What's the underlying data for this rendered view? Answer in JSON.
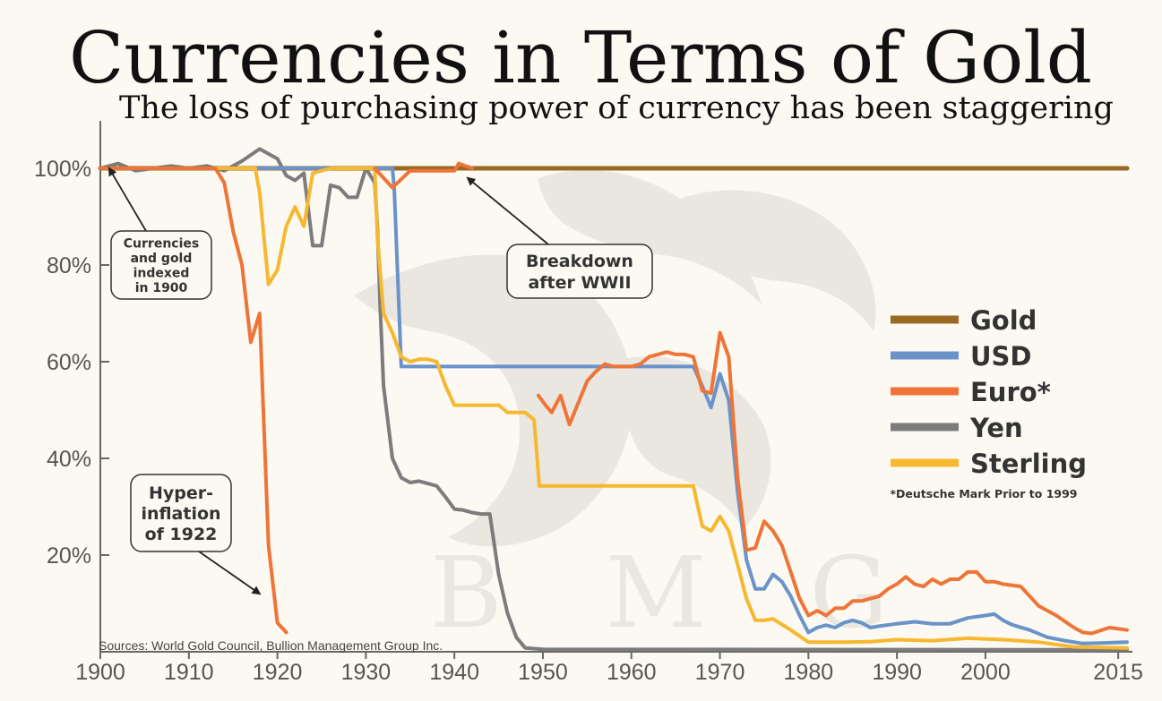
{
  "chart_data": {
    "type": "line",
    "title": "Currencies in Terms of Gold",
    "subtitle": "The loss of purchasing power of currency has been staggering",
    "xlabel": "",
    "ylabel": "",
    "xlim": [
      1900,
      2016
    ],
    "ylim": [
      0,
      105
    ],
    "x_ticks": [
      1900,
      1910,
      1920,
      1930,
      1940,
      1950,
      1960,
      1970,
      1980,
      1990,
      2000,
      2015
    ],
    "y_ticks": [
      {
        "value": 20,
        "label": "20%"
      },
      {
        "value": 40,
        "label": "40%"
      },
      {
        "value": 60,
        "label": "60%"
      },
      {
        "value": 80,
        "label": "80%"
      },
      {
        "value": 100,
        "label": "100%"
      }
    ],
    "legend_position": "right",
    "legend_note": "*Deutsche Mark Prior to 1999",
    "source": "Sources: World Gold Council, Bullion Management Group Inc.",
    "annotations": [
      {
        "id": "indexed",
        "lines": [
          "Currencies",
          "and gold",
          "indexed",
          "in 1900"
        ],
        "target": [
          1901,
          100
        ]
      },
      {
        "id": "wwii",
        "lines": [
          "Breakdown",
          "after WWII"
        ],
        "target": [
          1941.5,
          98
        ]
      },
      {
        "id": "hyper",
        "lines": [
          "Hyper-",
          "inflation",
          "of 1922"
        ],
        "target": [
          1918,
          12
        ]
      }
    ],
    "series": [
      {
        "name": "Gold",
        "color": "#9a6a25",
        "points": [
          [
            1900,
            100
          ],
          [
            2016,
            100
          ]
        ]
      },
      {
        "name": "Yen",
        "color": "#7c7c7c",
        "points": [
          [
            1900,
            100
          ],
          [
            1902,
            101
          ],
          [
            1904,
            99.5
          ],
          [
            1906,
            100
          ],
          [
            1908,
            100.5
          ],
          [
            1910,
            100
          ],
          [
            1912,
            100.5
          ],
          [
            1914,
            99.5
          ],
          [
            1916,
            101.5
          ],
          [
            1918,
            104
          ],
          [
            1920,
            102
          ],
          [
            1921,
            98.5
          ],
          [
            1922,
            97.5
          ],
          [
            1923,
            99
          ],
          [
            1924,
            84
          ],
          [
            1925,
            84
          ],
          [
            1926,
            96.5
          ],
          [
            1927,
            96
          ],
          [
            1928,
            94
          ],
          [
            1929,
            94
          ],
          [
            1930,
            100
          ],
          [
            1931,
            97
          ],
          [
            1931.3,
            88
          ],
          [
            1931.6,
            72
          ],
          [
            1932,
            55
          ],
          [
            1933,
            40
          ],
          [
            1934,
            36
          ],
          [
            1935,
            35
          ],
          [
            1936,
            35.3
          ],
          [
            1937,
            34.8
          ],
          [
            1938,
            34.3
          ],
          [
            1939,
            32
          ],
          [
            1940,
            29.5
          ],
          [
            1941,
            29.3
          ],
          [
            1942,
            28.8
          ],
          [
            1943,
            28.5
          ],
          [
            1944,
            28.5
          ],
          [
            1945,
            16
          ],
          [
            1946,
            8
          ],
          [
            1947,
            3
          ],
          [
            1948,
            0.8
          ],
          [
            1950,
            0.5
          ],
          [
            2016,
            0.4
          ]
        ]
      },
      {
        "name": "USD",
        "color": "#6a93c9",
        "points": [
          [
            1900,
            100
          ],
          [
            1933,
            100
          ],
          [
            1933.2,
            96
          ],
          [
            1934,
            59
          ],
          [
            1967,
            59
          ],
          [
            1968,
            55
          ],
          [
            1969,
            50.5
          ],
          [
            1970,
            57.5
          ],
          [
            1971,
            52
          ],
          [
            1972,
            33
          ],
          [
            1973,
            19
          ],
          [
            1974,
            13
          ],
          [
            1975,
            13
          ],
          [
            1976,
            16
          ],
          [
            1977,
            14.5
          ],
          [
            1978,
            11.5
          ],
          [
            1979,
            7.5
          ],
          [
            1980,
            4
          ],
          [
            1981,
            5
          ],
          [
            1982,
            5.5
          ],
          [
            1983,
            5
          ],
          [
            1984,
            6
          ],
          [
            1985,
            6.5
          ],
          [
            1986,
            6
          ],
          [
            1987,
            5
          ],
          [
            1988,
            5.3
          ],
          [
            1990,
            5.8
          ],
          [
            1992,
            6.2
          ],
          [
            1994,
            5.8
          ],
          [
            1996,
            5.8
          ],
          [
            1998,
            7
          ],
          [
            2000,
            7.5
          ],
          [
            2001,
            7.8
          ],
          [
            2002,
            6.5
          ],
          [
            2003,
            5.6
          ],
          [
            2005,
            4.5
          ],
          [
            2007,
            3
          ],
          [
            2009,
            2.3
          ],
          [
            2011,
            1.7
          ],
          [
            2013,
            1.8
          ],
          [
            2016,
            2
          ]
        ]
      },
      {
        "name": "Sterling",
        "color": "#f7b831",
        "points": [
          [
            1900,
            100
          ],
          [
            1917.5,
            100
          ],
          [
            1918,
            95
          ],
          [
            1919,
            76
          ],
          [
            1920,
            79
          ],
          [
            1921,
            88
          ],
          [
            1922,
            92
          ],
          [
            1923,
            88
          ],
          [
            1924,
            99
          ],
          [
            1926,
            100
          ],
          [
            1931,
            100
          ],
          [
            1931.3,
            86
          ],
          [
            1932,
            70
          ],
          [
            1933,
            66
          ],
          [
            1934,
            61
          ],
          [
            1935,
            60
          ],
          [
            1936,
            60.5
          ],
          [
            1937,
            60.5
          ],
          [
            1938,
            60
          ],
          [
            1939,
            55
          ],
          [
            1940,
            51
          ],
          [
            1945,
            51
          ],
          [
            1946,
            49.5
          ],
          [
            1948,
            49.5
          ],
          [
            1949,
            48
          ],
          [
            1949.6,
            34.3
          ],
          [
            1967,
            34.3
          ],
          [
            1968,
            26
          ],
          [
            1969,
            25
          ],
          [
            1970,
            28
          ],
          [
            1971,
            25
          ],
          [
            1972,
            18
          ],
          [
            1973,
            11
          ],
          [
            1974,
            6.5
          ],
          [
            1975,
            6.5
          ],
          [
            1976,
            6.8
          ],
          [
            1978,
            4.5
          ],
          [
            1980,
            2
          ],
          [
            1982,
            2
          ],
          [
            1984,
            2
          ],
          [
            1987,
            2.1
          ],
          [
            1990,
            2.5
          ],
          [
            1994,
            2.3
          ],
          [
            1998,
            2.8
          ],
          [
            2002,
            2.5
          ],
          [
            2006,
            2
          ],
          [
            2010,
            1
          ],
          [
            2016,
            0.8
          ]
        ]
      },
      {
        "name": "Euro*",
        "color": "#ef7437",
        "points": [
          [
            1900,
            100
          ],
          [
            1913,
            100
          ],
          [
            1914,
            97
          ],
          [
            1915,
            87
          ],
          [
            1916,
            80
          ],
          [
            1917,
            64
          ],
          [
            1918,
            70
          ],
          [
            1919,
            22
          ],
          [
            1920,
            6
          ],
          [
            1921,
            4
          ]
        ]
      },
      {
        "name": "Euro*",
        "color": "#ef7437",
        "points": [
          [
            1931,
            100
          ],
          [
            1933,
            96
          ],
          [
            1935,
            99.5
          ],
          [
            1940,
            99.5
          ],
          [
            1940.5,
            101
          ],
          [
            1942,
            100
          ]
        ]
      },
      {
        "name": "Euro*",
        "color": "#ef7437",
        "points": [
          [
            1949.5,
            53
          ],
          [
            1950.3,
            51
          ],
          [
            1951,
            49.5
          ],
          [
            1952,
            53
          ],
          [
            1953,
            47
          ],
          [
            1955,
            56
          ],
          [
            1956,
            58
          ],
          [
            1957,
            59.5
          ],
          [
            1958,
            59
          ],
          [
            1960,
            59
          ],
          [
            1961,
            59.5
          ],
          [
            1962,
            61
          ],
          [
            1964,
            62
          ],
          [
            1965,
            61.5
          ],
          [
            1966,
            61.5
          ],
          [
            1967,
            61
          ],
          [
            1968,
            54
          ],
          [
            1969,
            53.5
          ],
          [
            1970,
            66
          ],
          [
            1971,
            61
          ],
          [
            1972,
            36
          ],
          [
            1973,
            21
          ],
          [
            1974,
            21.5
          ],
          [
            1975,
            27
          ],
          [
            1976,
            25
          ],
          [
            1977,
            22
          ],
          [
            1979,
            11
          ],
          [
            1980,
            7.5
          ],
          [
            1981,
            8.5
          ],
          [
            1982,
            7.5
          ],
          [
            1983,
            9
          ],
          [
            1984,
            9
          ],
          [
            1985,
            10.5
          ],
          [
            1986,
            10.5
          ],
          [
            1988,
            11.5
          ],
          [
            1989,
            13
          ],
          [
            1990,
            14
          ],
          [
            1991,
            15.5
          ],
          [
            1992,
            14
          ],
          [
            1993,
            13.5
          ],
          [
            1994,
            15
          ],
          [
            1995,
            14
          ],
          [
            1996,
            15
          ],
          [
            1997,
            15
          ],
          [
            1998,
            16.5
          ],
          [
            1999,
            16.5
          ],
          [
            2000,
            14.5
          ],
          [
            2001,
            14.5
          ],
          [
            2002,
            14
          ],
          [
            2004,
            13.5
          ],
          [
            2006,
            9.5
          ],
          [
            2008,
            7.5
          ],
          [
            2010,
            5
          ],
          [
            2011,
            4
          ],
          [
            2012,
            3.8
          ],
          [
            2014,
            5
          ],
          [
            2016,
            4.5
          ]
        ]
      }
    ],
    "legend": [
      {
        "name": "Gold",
        "color": "#9a6a25"
      },
      {
        "name": "USD",
        "color": "#6a93c9"
      },
      {
        "name": "Euro*",
        "color": "#ef7437"
      },
      {
        "name": "Yen",
        "color": "#7c7c7c"
      },
      {
        "name": "Sterling",
        "color": "#f7b831"
      }
    ],
    "watermark": "BMG"
  }
}
